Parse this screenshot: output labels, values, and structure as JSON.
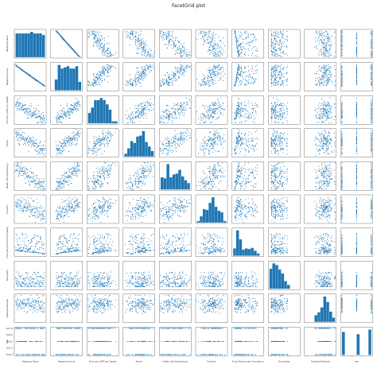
{
  "figure": {
    "title": "FacetGrid plot"
  },
  "chart_data": {
    "type": "scatter",
    "subtype": "pairplot",
    "title": "FacetGrid plot",
    "diag_kind": "hist",
    "marker_color": "#1f77b4",
    "grid": false,
    "variables": [
      "Happiness Rank",
      "Happiness Score",
      "Economy (GDP per Capita)",
      "Family",
      "Health (Life Expectancy)",
      "Freedom",
      "Trust (Government Corruption)",
      "Generosity",
      "Dystopia Residual",
      "Year"
    ],
    "ranges": [
      [
        0,
        160
      ],
      [
        2,
        8
      ],
      [
        0,
        2
      ],
      [
        0,
        1.5
      ],
      [
        0,
        1
      ],
      [
        0,
        0.7
      ],
      [
        0,
        0.5
      ],
      [
        0,
        0.8
      ],
      [
        0,
        3.5
      ],
      [
        2015,
        2017
      ]
    ],
    "year_ticks": [
      "2015.0",
      "2015.5",
      "2016.0",
      "2016.5",
      "2017.0"
    ],
    "n_points": 150
  }
}
